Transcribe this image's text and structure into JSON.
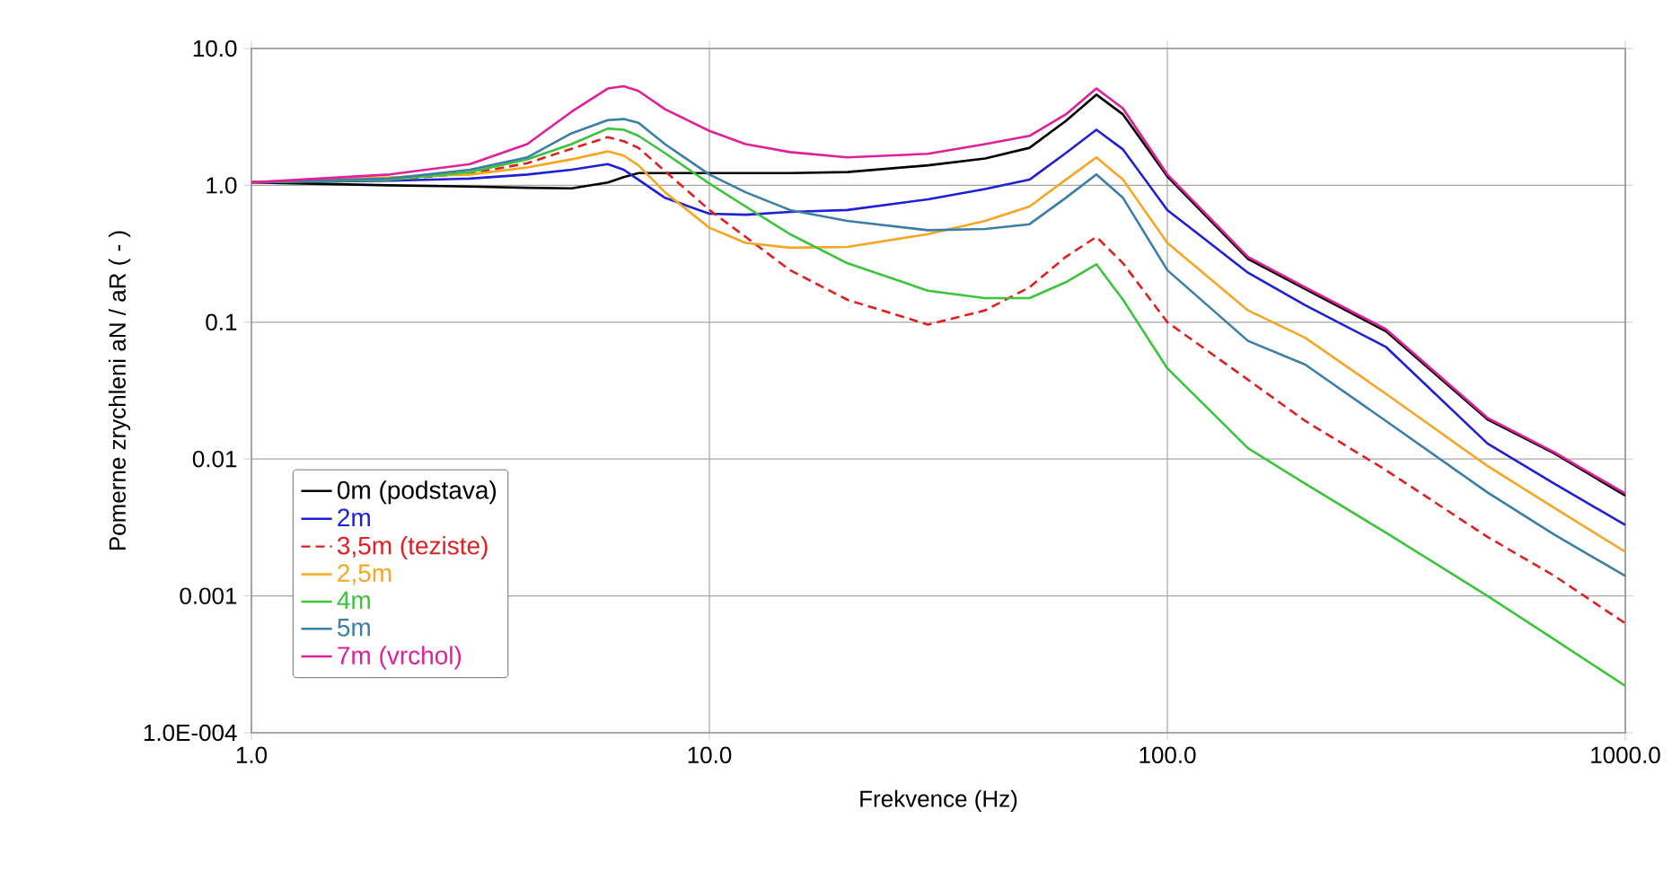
{
  "chart_data": {
    "type": "line",
    "xlabel": "Frekvence (Hz)",
    "ylabel": "Pomerne zrychleni aN / aR ( - )",
    "x": [
      1,
      2,
      3,
      4,
      5,
      6,
      6.5,
      7,
      8,
      10,
      12,
      15,
      20,
      30,
      40,
      50,
      60,
      70,
      80,
      100,
      150,
      200,
      300,
      500,
      700,
      1000
    ],
    "series": [
      {
        "name": "0m (podstava)",
        "color": "#000000",
        "values": [
          1.05,
          1.0,
          0.98,
          0.96,
          0.95,
          1.05,
          1.15,
          1.23,
          1.23,
          1.23,
          1.23,
          1.23,
          1.25,
          1.4,
          1.57,
          1.88,
          2.95,
          4.6,
          3.3,
          1.16,
          0.29,
          0.175,
          0.086,
          0.0195,
          0.011,
          0.0054
        ]
      },
      {
        "name": "2m",
        "color": "#1f1fd6",
        "values": [
          1.05,
          1.08,
          1.12,
          1.2,
          1.3,
          1.43,
          1.3,
          1.1,
          0.81,
          0.62,
          0.61,
          0.64,
          0.66,
          0.79,
          0.94,
          1.1,
          1.72,
          2.55,
          1.83,
          0.66,
          0.23,
          0.133,
          0.066,
          0.013,
          0.0066,
          0.0033
        ]
      },
      {
        "name": "3,5m (teziste)",
        "color": "#e02020",
        "line_style": "dashed",
        "values": [
          1.05,
          1.1,
          1.22,
          1.45,
          1.85,
          2.25,
          2.1,
          1.88,
          1.27,
          0.66,
          0.42,
          0.24,
          0.146,
          0.096,
          0.122,
          0.18,
          0.3,
          0.42,
          0.27,
          0.1,
          0.038,
          0.019,
          0.0083,
          0.0027,
          0.0014,
          0.00063
        ]
      },
      {
        "name": "2,5m",
        "color": "#f5a623",
        "values": [
          1.05,
          null,
          1.2,
          1.35,
          1.55,
          1.77,
          1.65,
          1.4,
          0.89,
          0.49,
          0.38,
          0.35,
          0.355,
          0.44,
          0.55,
          0.7,
          1.1,
          1.6,
          1.1,
          0.38,
          0.122,
          0.077,
          0.03,
          0.0089,
          0.0044,
          0.0021
        ]
      },
      {
        "name": "4m",
        "color": "#3cc43c",
        "values": [
          1.05,
          1.1,
          1.25,
          1.55,
          2.0,
          2.6,
          2.55,
          2.3,
          1.72,
          1.03,
          0.7,
          0.44,
          0.27,
          0.17,
          0.15,
          0.15,
          0.196,
          0.265,
          0.146,
          0.046,
          0.012,
          0.0066,
          0.0029,
          0.001,
          0.00048,
          0.00022
        ]
      },
      {
        "name": "5m",
        "color": "#3c7fa6",
        "values": [
          1.05,
          1.12,
          1.3,
          1.6,
          2.4,
          3.0,
          3.05,
          2.86,
          2.0,
          1.2,
          0.89,
          0.66,
          0.55,
          0.47,
          0.48,
          0.52,
          0.81,
          1.2,
          0.81,
          0.24,
          0.073,
          0.049,
          0.019,
          0.0057,
          0.0028,
          0.0014
        ]
      },
      {
        "name": "7m (vrchol)",
        "color": "#e0209a",
        "values": [
          1.05,
          1.2,
          1.43,
          2.0,
          3.45,
          5.1,
          5.3,
          4.9,
          3.6,
          2.5,
          2.0,
          1.75,
          1.6,
          1.7,
          2.0,
          2.3,
          3.3,
          5.1,
          3.65,
          1.2,
          0.3,
          0.18,
          0.089,
          0.02,
          0.0112,
          0.0056
        ]
      }
    ],
    "log": "xy",
    "grid": true,
    "legend": "bottom left",
    "marker": "none",
    "line_style": "solid",
    "xlim": [
      1,
      1000
    ],
    "ylim": [
      0.0001,
      10
    ],
    "xticks": [
      {
        "value": 1,
        "label": "1.0"
      },
      {
        "value": 10,
        "label": "10.0"
      },
      {
        "value": 100,
        "label": "100.0"
      },
      {
        "value": 1000,
        "label": "1000.0"
      }
    ],
    "yticks": [
      {
        "value": 0.0001,
        "label": "1.0E-004"
      },
      0.001,
      0.01,
      0.1,
      {
        "value": 1,
        "label": "1.0"
      },
      {
        "value": 10,
        "label": "10.0"
      }
    ]
  }
}
